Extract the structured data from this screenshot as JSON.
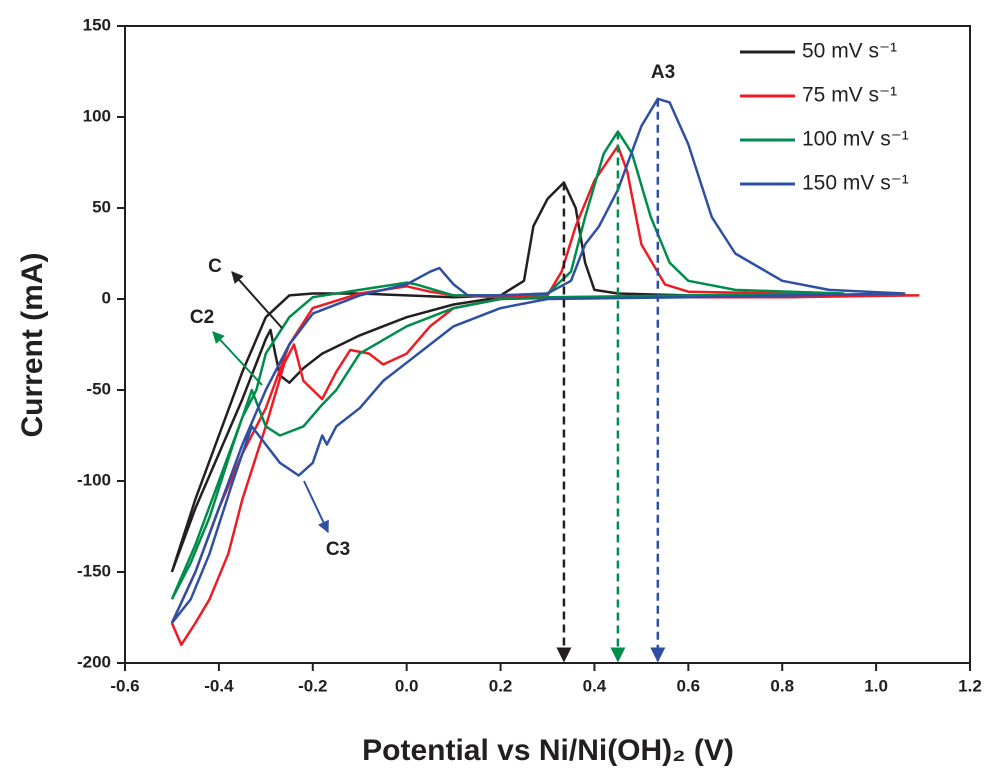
{
  "chart_data": {
    "type": "line",
    "xlabel": "Potential vs Ni/Ni(OH)₂ (V)",
    "ylabel": "Current (mA)",
    "xlim": [
      -0.6,
      1.2
    ],
    "ylim": [
      -200,
      150
    ],
    "xticks": [
      -0.6,
      -0.4,
      -0.2,
      {
        "value": 0,
        "label": "0.0"
      },
      0.2,
      0.4,
      0.6,
      0.8,
      {
        "value": 1,
        "label": "1.0"
      },
      1.2
    ],
    "yticks": [
      -200,
      -150,
      -100,
      -50,
      0,
      50,
      100,
      150
    ],
    "legend": "top-right",
    "series": [
      {
        "name": "50 mV s⁻¹",
        "color": "#231f20",
        "x": [
          -0.5,
          -0.45,
          -0.4,
          -0.35,
          -0.3,
          -0.25,
          -0.2,
          -0.1,
          0.0,
          0.1,
          0.2,
          0.25,
          0.27,
          0.3,
          0.335,
          0.36,
          0.38,
          0.4,
          0.45,
          0.6,
          0.8,
          1.0,
          0.8,
          0.4,
          0.2,
          0.1,
          0.0,
          -0.1,
          -0.18,
          -0.22,
          -0.25,
          -0.27,
          -0.28,
          -0.29,
          -0.3,
          -0.35,
          -0.4,
          -0.45,
          -0.5
        ],
        "values": [
          -150,
          -110,
          -75,
          -40,
          -10,
          2,
          3,
          3,
          2,
          1,
          2,
          10,
          40,
          55,
          64,
          50,
          20,
          5,
          3,
          2,
          2,
          2,
          1,
          1,
          1,
          -3,
          -10,
          -20,
          -30,
          -38,
          -46,
          -42,
          -30,
          -17,
          -22,
          -55,
          -85,
          -115,
          -150
        ]
      },
      {
        "name": "75 mV s⁻¹",
        "color": "#ed1c24",
        "x": [
          -0.5,
          -0.45,
          -0.4,
          -0.35,
          -0.3,
          -0.25,
          -0.2,
          -0.1,
          0.0,
          0.05,
          0.1,
          0.2,
          0.3,
          0.33,
          0.36,
          0.4,
          0.45,
          0.47,
          0.5,
          0.55,
          0.6,
          0.8,
          1.0,
          1.09,
          0.8,
          0.4,
          0.2,
          0.1,
          0.05,
          0.0,
          -0.05,
          -0.08,
          -0.12,
          -0.15,
          -0.18,
          -0.22,
          -0.24,
          -0.26,
          -0.3,
          -0.35,
          -0.38,
          -0.42,
          -0.45,
          -0.48,
          -0.5
        ],
        "values": [
          -178,
          -150,
          -115,
          -85,
          -60,
          -25,
          -5,
          3,
          7,
          4,
          2,
          1,
          2,
          15,
          40,
          65,
          84,
          70,
          30,
          8,
          4,
          3,
          2,
          2,
          1,
          1,
          0,
          -5,
          -15,
          -30,
          -36,
          -30,
          -28,
          -40,
          -55,
          -45,
          -25,
          -35,
          -70,
          -110,
          -140,
          -165,
          -178,
          -190,
          -178
        ]
      },
      {
        "name": "100 mV s⁻¹",
        "color": "#008d4c",
        "x": [
          -0.5,
          -0.45,
          -0.4,
          -0.35,
          -0.32,
          -0.3,
          -0.25,
          -0.2,
          -0.1,
          0.0,
          0.02,
          0.1,
          0.2,
          0.3,
          0.35,
          0.38,
          0.42,
          0.45,
          0.48,
          0.52,
          0.56,
          0.6,
          0.7,
          0.93,
          0.6,
          0.3,
          0.2,
          0.1,
          0.0,
          -0.1,
          -0.15,
          -0.18,
          -0.22,
          -0.27,
          -0.3,
          -0.33,
          -0.37,
          -0.42,
          -0.46,
          -0.5
        ],
        "values": [
          -165,
          -135,
          -100,
          -65,
          -50,
          -30,
          -10,
          1,
          5,
          9,
          8,
          2,
          2,
          3,
          15,
          45,
          80,
          92,
          80,
          45,
          20,
          10,
          5,
          3,
          2,
          1,
          0,
          -5,
          -15,
          -30,
          -50,
          -58,
          -70,
          -75,
          -70,
          -50,
          -80,
          -120,
          -145,
          -165
        ]
      },
      {
        "name": "150 mV s⁻¹",
        "color": "#2e4fa3",
        "x": [
          -0.5,
          -0.45,
          -0.4,
          -0.35,
          -0.3,
          -0.25,
          -0.2,
          -0.1,
          0.0,
          0.05,
          0.07,
          0.1,
          0.13,
          0.2,
          0.3,
          0.35,
          0.38,
          0.41,
          0.45,
          0.5,
          0.535,
          0.56,
          0.6,
          0.65,
          0.7,
          0.8,
          0.9,
          1.06,
          0.6,
          0.3,
          0.2,
          0.1,
          0.05,
          0.0,
          -0.05,
          -0.1,
          -0.15,
          -0.17,
          -0.18,
          -0.2,
          -0.23,
          -0.27,
          -0.33,
          -0.37,
          -0.42,
          -0.46,
          -0.5
        ],
        "values": [
          -178,
          -150,
          -115,
          -80,
          -50,
          -25,
          -8,
          2,
          8,
          15,
          17,
          8,
          2,
          2,
          3,
          10,
          30,
          40,
          60,
          95,
          110,
          108,
          85,
          45,
          25,
          10,
          5,
          3,
          1,
          0,
          -5,
          -15,
          -25,
          -35,
          -45,
          -60,
          -70,
          -80,
          -75,
          -90,
          -97,
          -90,
          -70,
          -100,
          -140,
          -165,
          -178
        ]
      }
    ],
    "peak_markers": [
      {
        "x": 0.335,
        "y": 64,
        "color": "#231f20"
      },
      {
        "x": 0.45,
        "y": 92,
        "color": "#008d4c"
      },
      {
        "x": 0.535,
        "y": 110,
        "color": "#2e4fa3"
      }
    ],
    "annotations": [
      {
        "text": "C",
        "color": "#231f20"
      },
      {
        "text": "C2",
        "color": "#008d4c"
      },
      {
        "text": "C3",
        "color": "#2e4fa3"
      },
      {
        "text": "A3",
        "color": "#2e4fa3"
      }
    ]
  }
}
